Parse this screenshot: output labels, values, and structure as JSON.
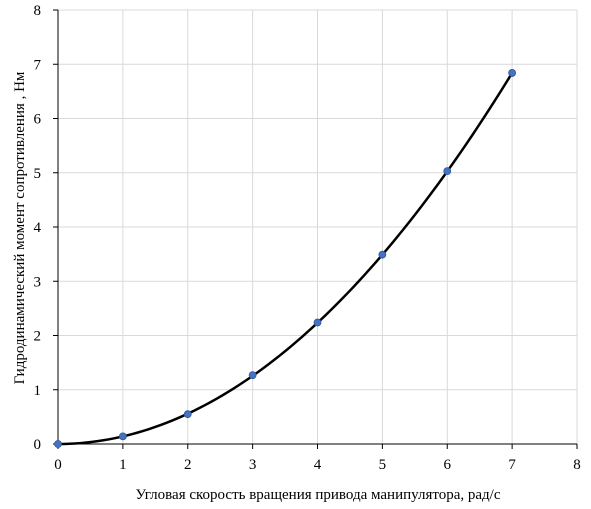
{
  "chart_data": {
    "type": "scatter",
    "title": "",
    "xlabel": "Угловая скорость вращения привода манипулятора, рад/с",
    "ylabel": "Гидродинамический момент сопротивления , Нм",
    "xlim": [
      0,
      8
    ],
    "ylim": [
      0,
      8
    ],
    "xticks": [
      "0",
      "1",
      "2",
      "3",
      "4",
      "5",
      "6",
      "7",
      "8"
    ],
    "yticks": [
      "0",
      "1",
      "2",
      "3",
      "4",
      "5",
      "6",
      "7",
      "8"
    ],
    "grid": true,
    "legend": "none",
    "series": [
      {
        "kind": "points",
        "x": [
          0,
          1,
          2,
          3,
          4,
          5,
          6,
          7
        ],
        "y": [
          0,
          0.14,
          0.55,
          1.27,
          2.24,
          3.49,
          5.03,
          6.84
        ]
      },
      {
        "kind": "trendline",
        "equation": "y = 0.1396 * x^2",
        "coef": 0.1396,
        "power": 2,
        "x_range": [
          0,
          7
        ]
      }
    ],
    "colors": {
      "points": "#4472C4",
      "trendline": "#000000",
      "grid": "#D9D9D9",
      "axis": "#000000"
    }
  }
}
